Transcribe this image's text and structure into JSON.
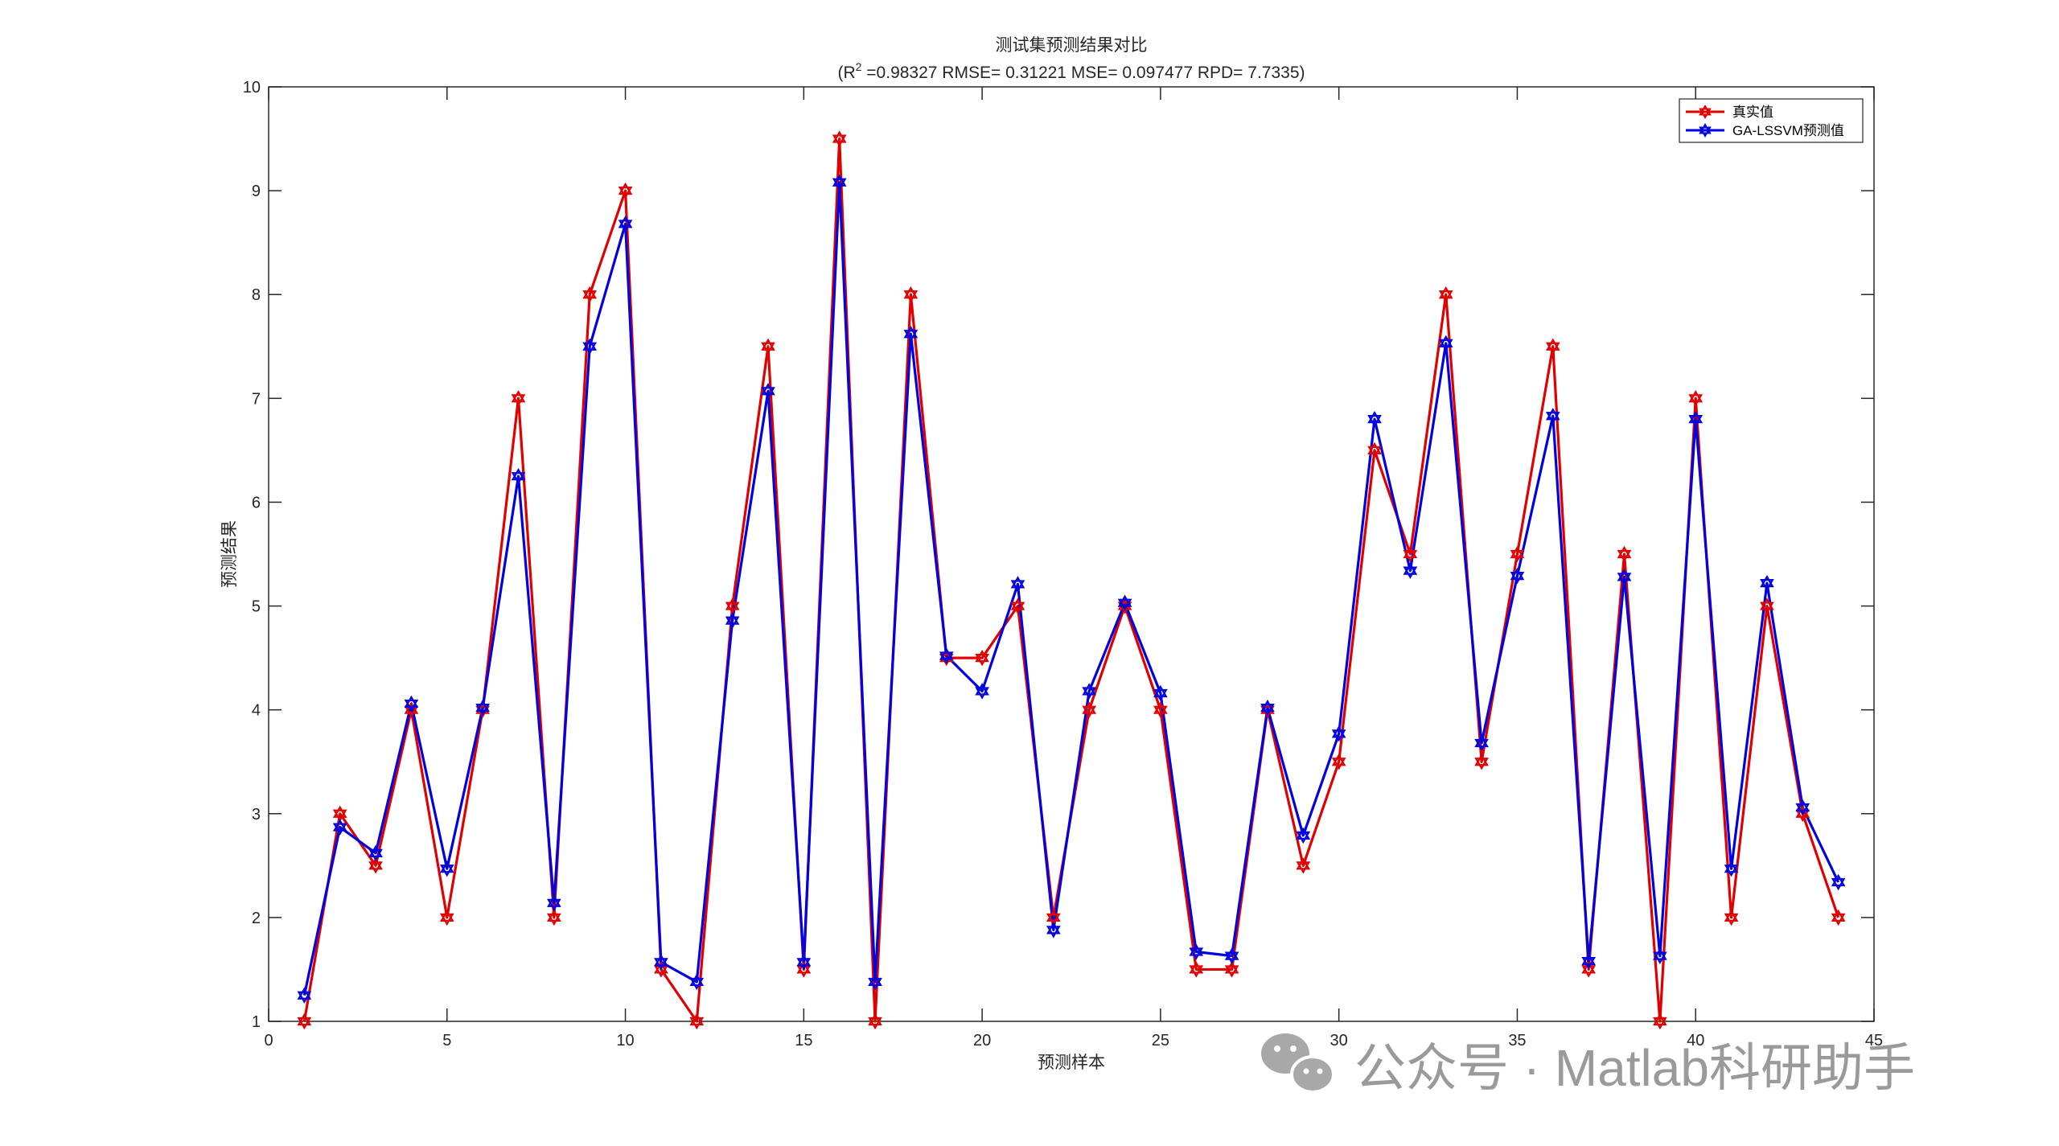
{
  "chart_data": {
    "type": "line",
    "title": "测试集预测结果对比",
    "subtitle_prefix": "(R",
    "subtitle_sup": "2",
    "subtitle_rest": " =0.98327 RMSE= 0.31221 MSE= 0.097477 RPD= 7.7335)",
    "xlabel": "预测样本",
    "ylabel": "预测结果",
    "xlim": [
      0,
      45
    ],
    "ylim": [
      1,
      10
    ],
    "xticks": [
      0,
      5,
      10,
      15,
      20,
      25,
      30,
      35,
      40,
      45
    ],
    "yticks": [
      1,
      2,
      3,
      4,
      5,
      6,
      7,
      8,
      9,
      10
    ],
    "grid": false,
    "legend_position": "top-right",
    "x": [
      1,
      2,
      3,
      4,
      5,
      6,
      7,
      8,
      9,
      10,
      11,
      12,
      13,
      14,
      15,
      16,
      17,
      18,
      19,
      20,
      21,
      22,
      23,
      24,
      25,
      26,
      27,
      28,
      29,
      30,
      31,
      32,
      33,
      34,
      35,
      36,
      37,
      38,
      39,
      40,
      41,
      42,
      43,
      44
    ],
    "series": [
      {
        "name": "真实值",
        "color": "#e00000",
        "values": [
          1.0,
          3.0,
          2.5,
          4.0,
          2.0,
          4.0,
          7.0,
          2.0,
          8.0,
          9.0,
          1.5,
          1.0,
          5.0,
          7.5,
          1.5,
          9.5,
          1.0,
          8.0,
          4.5,
          4.5,
          5.0,
          2.0,
          4.0,
          5.0,
          4.0,
          1.5,
          1.5,
          4.0,
          2.5,
          3.5,
          6.5,
          5.5,
          8.0,
          3.5,
          5.5,
          7.5,
          1.5,
          5.5,
          1.0,
          7.0,
          2.0,
          5.0,
          3.0,
          2.0
        ]
      },
      {
        "name": "GA-LSSVM预测值",
        "color": "#0000e0",
        "values": [
          1.25,
          2.87,
          2.62,
          4.06,
          2.47,
          4.02,
          6.25,
          2.14,
          7.5,
          8.68,
          1.57,
          1.38,
          4.86,
          7.07,
          1.57,
          9.08,
          1.38,
          7.62,
          4.52,
          4.18,
          5.21,
          1.88,
          4.18,
          5.03,
          4.16,
          1.67,
          1.63,
          4.02,
          2.79,
          3.77,
          6.8,
          5.34,
          7.53,
          3.68,
          5.29,
          6.83,
          1.58,
          5.28,
          1.63,
          6.8,
          2.47,
          5.22,
          3.06,
          2.34
        ]
      }
    ]
  },
  "watermark": {
    "icon": "wechat-icon",
    "text": "公众号 · Matlab科研助手"
  }
}
